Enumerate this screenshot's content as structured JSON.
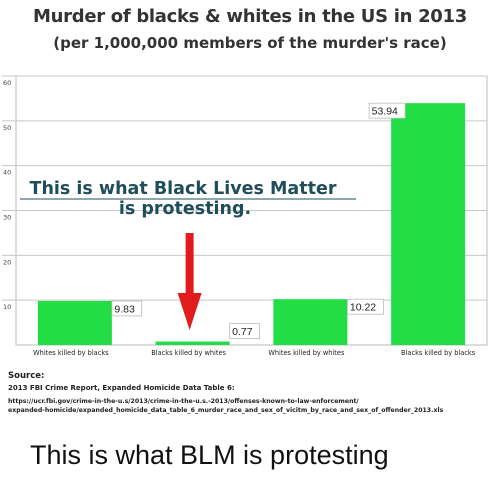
{
  "title": "Murder of blacks & whites in the US in 2013",
  "subtitle": "(per 1,000,000 members of the murder's race)",
  "chart_data": {
    "type": "bar",
    "categories": [
      "Whites killed by blacks",
      "Blacks killed by whites",
      "Whites killed by whites",
      "Blacks killed by blacks"
    ],
    "values": [
      9.83,
      0.77,
      10.22,
      53.94
    ],
    "value_labels": [
      "9.83",
      "0.77",
      "10.22",
      "53.94"
    ],
    "ylim": [
      0,
      60
    ],
    "yticks": [
      10,
      20,
      30,
      40,
      50,
      60
    ],
    "grid": true,
    "bar_color": "#22dd44",
    "annotation": {
      "line1": "This is what Black Lives Matter",
      "line2": "is protesting.",
      "text_color": "#1f4e5a",
      "arrow_color": "#e01c1c",
      "points_to": "Blacks killed by whites"
    }
  },
  "source": {
    "heading": "Source:",
    "line1": "2013 FBI Crime Report, Expanded Homicide Data Table 6:",
    "line2": "https://ucr.fbi.gov/crime-in-the-u.s/2013/crime-in-the-u.s.-2013/offenses-known-to-law-enforcement/",
    "line3": "expanded-homicide/expanded_homicide_data_table_6_murder_race_and_sex_of_vicitm_by_race_and_sex_of_offender_2013.xls"
  },
  "caption": "This is what BLM is protesting"
}
